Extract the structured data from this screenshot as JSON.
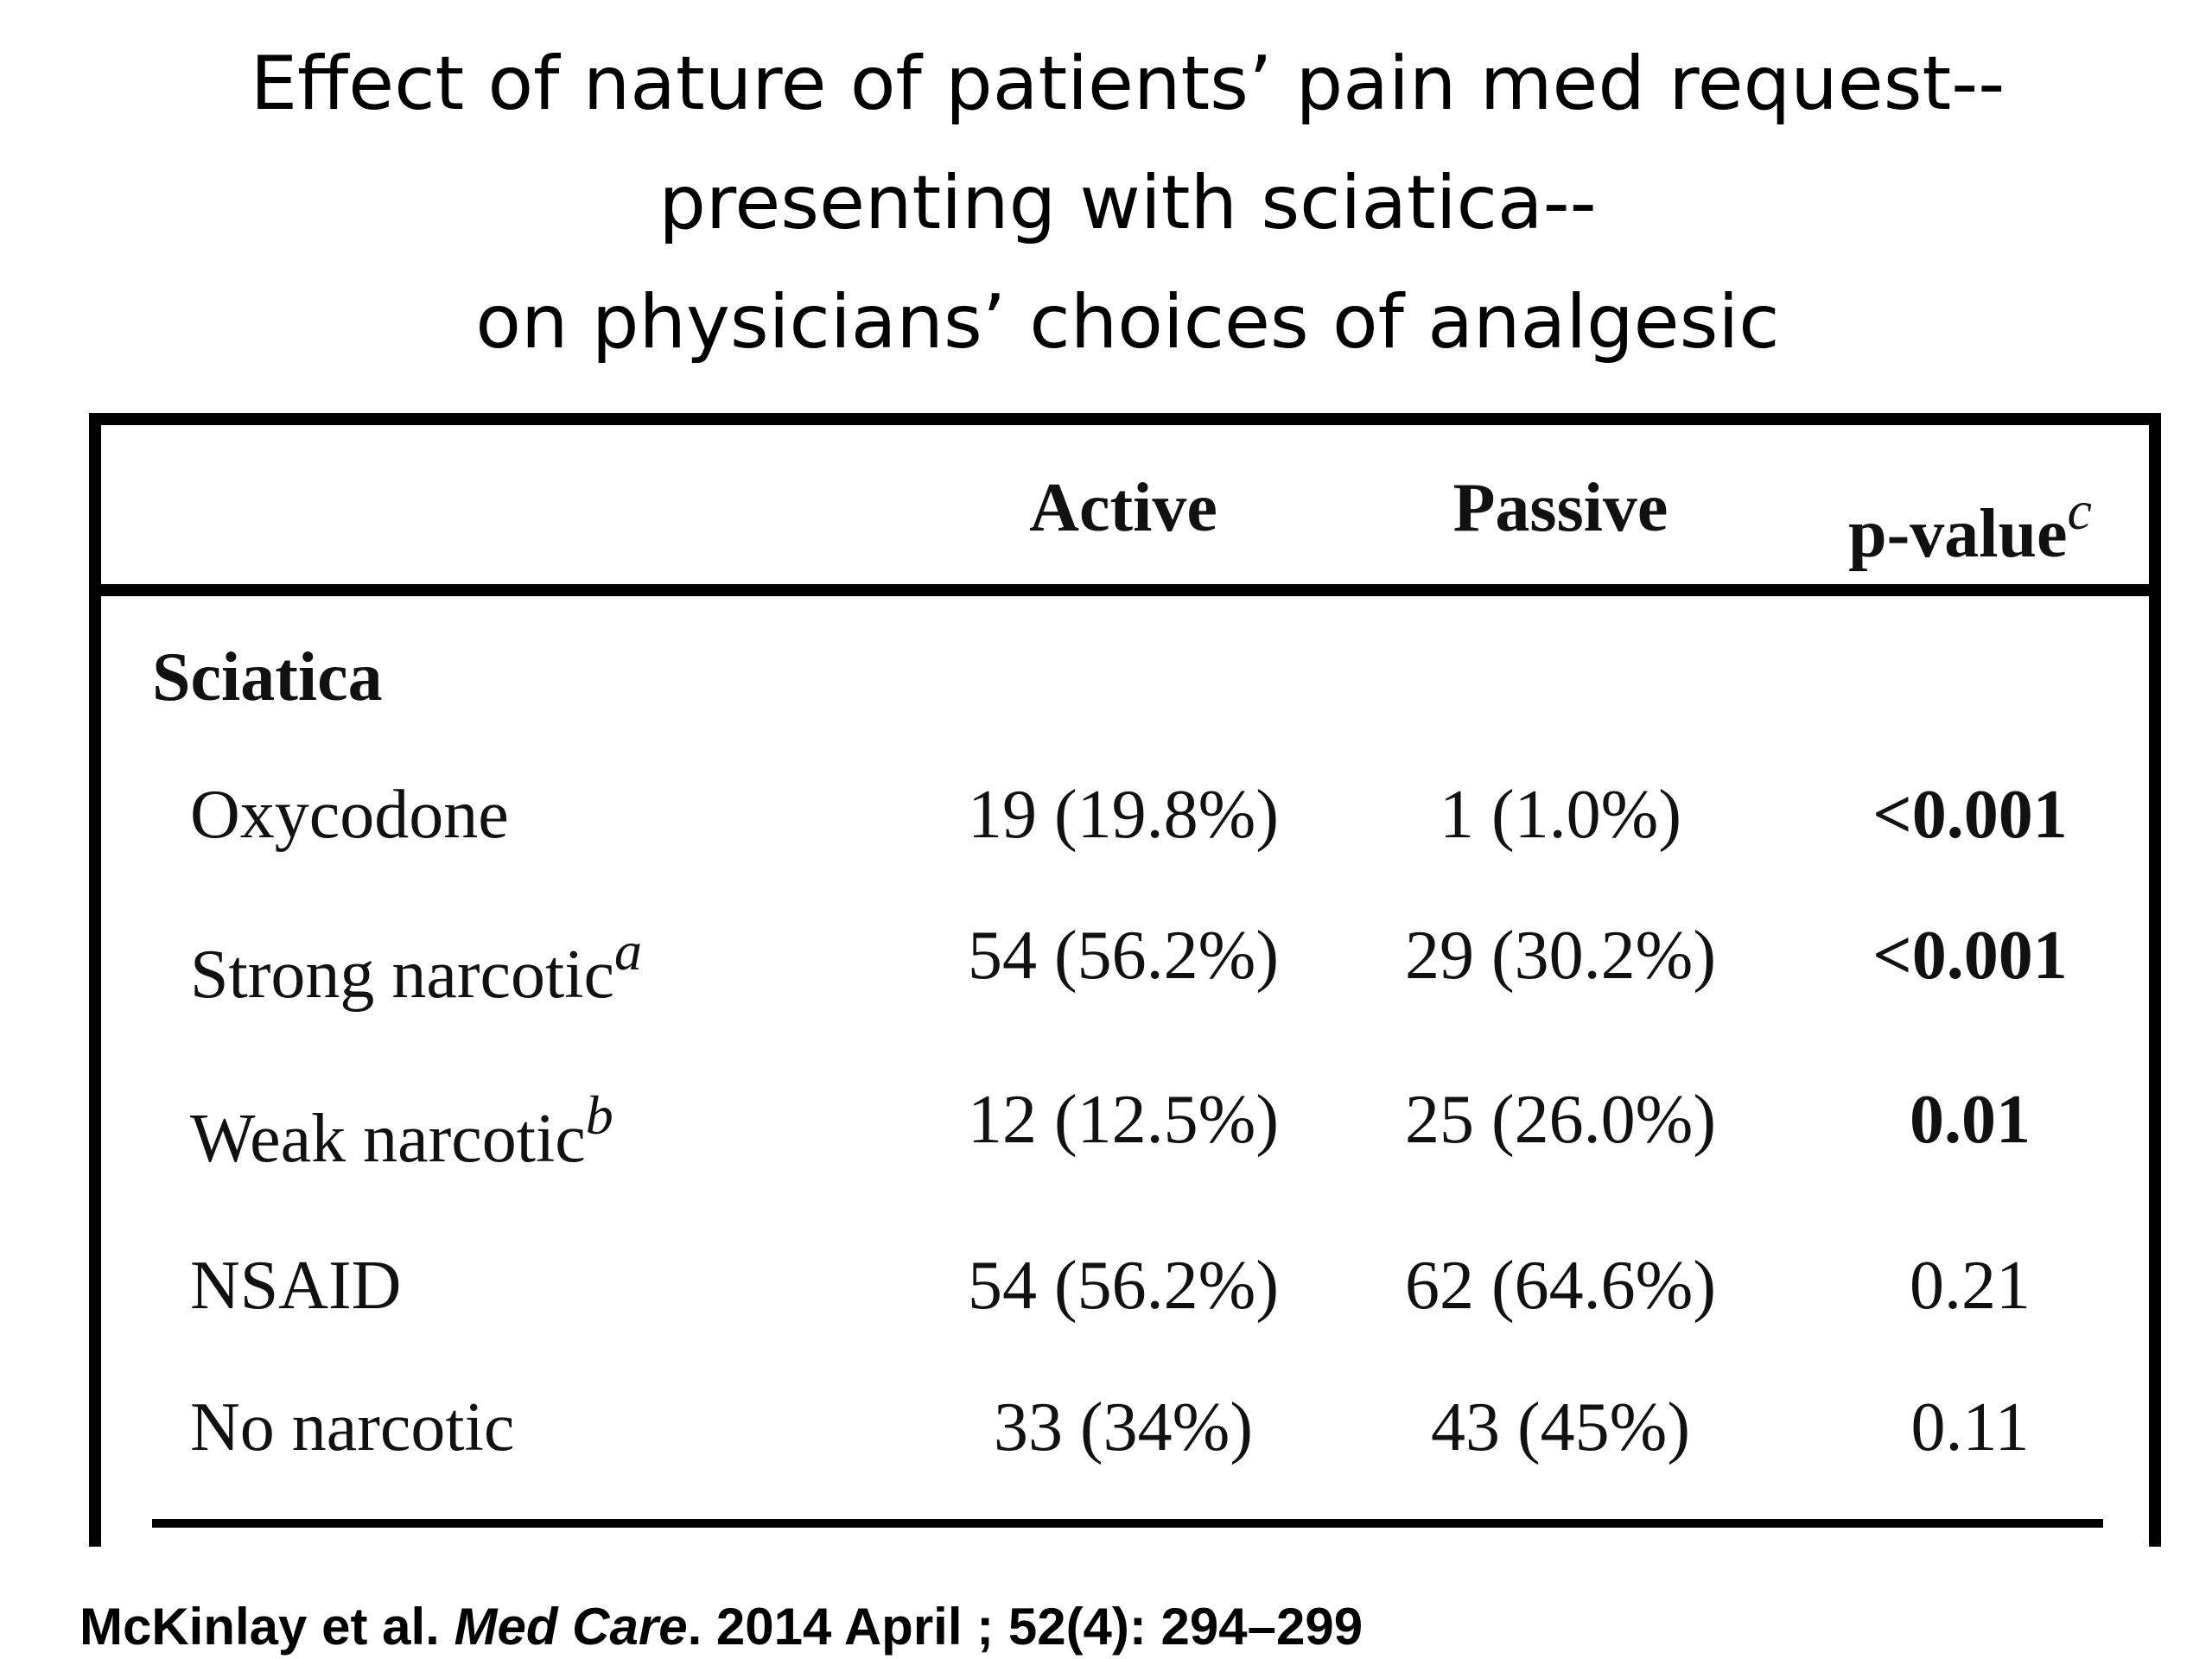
{
  "title": {
    "line1": "Effect of nature of patients’ pain med request--",
    "line2": "presenting with sciatica--",
    "line3": "on physicians’ choices of analgesic"
  },
  "table": {
    "headers": {
      "active": "Active",
      "passive": "Passive",
      "pvalue": "p-value",
      "pvalue_sup": "c"
    },
    "section": "Sciatica",
    "rows": [
      {
        "label": "Oxycodone",
        "sup": "",
        "active": "19 (19.8%)",
        "passive": "1 (1.0%)",
        "p": "<0.001",
        "p_bold": true
      },
      {
        "label": "Strong narcotic",
        "sup": "a",
        "active": "54 (56.2%)",
        "passive": "29 (30.2%)",
        "p": "<0.001",
        "p_bold": true
      },
      {
        "label": "Weak narcotic",
        "sup": "b",
        "active": "12 (12.5%)",
        "passive": "25 (26.0%)",
        "p": "0.01",
        "p_bold": true
      },
      {
        "label": "NSAID",
        "sup": "",
        "active": "54 (56.2%)",
        "passive": "62 (64.6%)",
        "p": "0.21",
        "p_bold": false
      },
      {
        "label": "No narcotic",
        "sup": "",
        "active": "33 (34%)",
        "passive": "43 (45%)",
        "p": "0.11",
        "p_bold": false
      }
    ]
  },
  "citation": {
    "authors": "McKinlay et al. ",
    "journal": "Med Care",
    "rest": ". 2014 April ; 52(4): 294–299"
  }
}
